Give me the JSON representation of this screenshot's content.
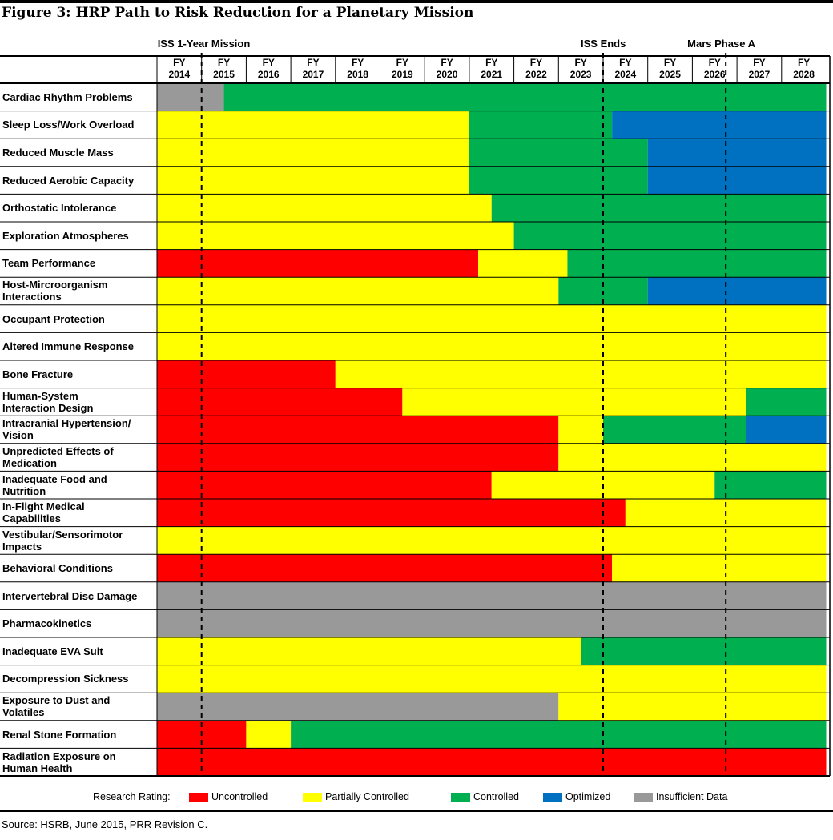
{
  "title": "Figure 3:  HRP Path to Risk Reduction for a Planetary Mission",
  "source": "Source: HSRB, June 2015, PRR Revision C.",
  "chart_data": {
    "type": "timeline",
    "years": [
      "FY\n2014",
      "FY\n2015",
      "FY\n2016",
      "FY\n2017",
      "FY\n2018",
      "FY\n2019",
      "FY\n2020",
      "FY\n2021",
      "FY\n2022",
      "FY\n2023",
      "FY\n2024",
      "FY\n2025",
      "FY\n2026",
      "FY\n2027",
      "FY\n2028"
    ],
    "year_start": 2014,
    "markers": [
      {
        "label": "ISS 1-Year Mission",
        "year": 2015.0
      },
      {
        "label": "ISS Ends",
        "year": 2024.0
      },
      {
        "label": "Mars Phase A",
        "year": 2026.75
      }
    ],
    "legend_title": "Research Rating:",
    "ratings": [
      {
        "key": "U",
        "label": "Uncontrolled",
        "color": "#ff0000"
      },
      {
        "key": "P",
        "label": "Partially Controlled",
        "color": "#ffff00"
      },
      {
        "key": "C",
        "label": "Controlled",
        "color": "#00b050"
      },
      {
        "key": "O",
        "label": "Optimized",
        "color": "#0070c0"
      },
      {
        "key": "I",
        "label": "Insufficient Data",
        "color": "#999999"
      }
    ],
    "risks": [
      {
        "name": "Cardiac Rhythm Problems",
        "segments": [
          [
            "I",
            2014.0,
            2015.5
          ],
          [
            "C",
            2015.5,
            2029.0
          ]
        ]
      },
      {
        "name": "Sleep Loss/Work Overload",
        "segments": [
          [
            "P",
            2014.0,
            2021.0
          ],
          [
            "C",
            2021.0,
            2024.2
          ],
          [
            "O",
            2024.2,
            2029.0
          ]
        ]
      },
      {
        "name": "Reduced Muscle Mass",
        "segments": [
          [
            "P",
            2014.0,
            2021.0
          ],
          [
            "C",
            2021.0,
            2025.0
          ],
          [
            "O",
            2025.0,
            2029.0
          ]
        ]
      },
      {
        "name": "Reduced Aerobic Capacity",
        "segments": [
          [
            "P",
            2014.0,
            2021.0
          ],
          [
            "C",
            2021.0,
            2025.0
          ],
          [
            "O",
            2025.0,
            2029.0
          ]
        ]
      },
      {
        "name": "Orthostatic Intolerance",
        "segments": [
          [
            "P",
            2014.0,
            2021.5
          ],
          [
            "C",
            2021.5,
            2029.0
          ]
        ]
      },
      {
        "name": "Exploration Atmospheres",
        "segments": [
          [
            "P",
            2014.0,
            2022.0
          ],
          [
            "C",
            2022.0,
            2029.0
          ]
        ]
      },
      {
        "name": "Team Performance",
        "segments": [
          [
            "U",
            2014.0,
            2021.2
          ],
          [
            "P",
            2021.2,
            2023.2
          ],
          [
            "C",
            2023.2,
            2029.0
          ]
        ]
      },
      {
        "name": "Host-Mircroorganism\nInteractions",
        "segments": [
          [
            "P",
            2014.0,
            2023.0
          ],
          [
            "C",
            2023.0,
            2025.0
          ],
          [
            "O",
            2025.0,
            2029.0
          ]
        ]
      },
      {
        "name": "Occupant Protection",
        "segments": [
          [
            "P",
            2014.0,
            2029.0
          ]
        ]
      },
      {
        "name": "Altered Immune Response",
        "segments": [
          [
            "P",
            2014.0,
            2029.0
          ]
        ]
      },
      {
        "name": "Bone Fracture",
        "segments": [
          [
            "U",
            2014.0,
            2018.0
          ],
          [
            "P",
            2018.0,
            2029.0
          ]
        ]
      },
      {
        "name": "Human-System\nInteraction Design",
        "segments": [
          [
            "U",
            2014.0,
            2019.5
          ],
          [
            "P",
            2019.5,
            2027.2
          ],
          [
            "C",
            2027.2,
            2029.0
          ]
        ]
      },
      {
        "name": "Intracranial Hypertension/\nVision",
        "segments": [
          [
            "U",
            2014.0,
            2023.0
          ],
          [
            "P",
            2023.0,
            2024.0
          ],
          [
            "C",
            2024.0,
            2027.2
          ],
          [
            "O",
            2027.2,
            2029.0
          ]
        ]
      },
      {
        "name": "Unpredicted Effects of\nMedication",
        "segments": [
          [
            "U",
            2014.0,
            2023.0
          ],
          [
            "P",
            2023.0,
            2029.0
          ]
        ]
      },
      {
        "name": "Inadequate Food and\nNutrition",
        "segments": [
          [
            "U",
            2014.0,
            2021.5
          ],
          [
            "P",
            2021.5,
            2026.5
          ],
          [
            "C",
            2026.5,
            2029.0
          ]
        ]
      },
      {
        "name": "In-Flight Medical\nCapabilities",
        "segments": [
          [
            "U",
            2014.0,
            2024.5
          ],
          [
            "P",
            2024.5,
            2029.0
          ]
        ]
      },
      {
        "name": "Vestibular/Sensorimotor\nImpacts",
        "segments": [
          [
            "P",
            2014.0,
            2029.0
          ]
        ]
      },
      {
        "name": "Behavioral Conditions",
        "segments": [
          [
            "U",
            2014.0,
            2024.2
          ],
          [
            "P",
            2024.2,
            2029.0
          ]
        ]
      },
      {
        "name": "Intervertebral Disc Damage",
        "segments": [
          [
            "I",
            2014.0,
            2029.0
          ]
        ]
      },
      {
        "name": "Pharmacokinetics",
        "segments": [
          [
            "I",
            2014.0,
            2029.0
          ]
        ]
      },
      {
        "name": "Inadequate EVA Suit",
        "segments": [
          [
            "P",
            2014.0,
            2023.5
          ],
          [
            "C",
            2023.5,
            2029.0
          ]
        ]
      },
      {
        "name": "Decompression Sickness",
        "segments": [
          [
            "P",
            2014.0,
            2029.0
          ]
        ]
      },
      {
        "name": "Exposure to Dust and\nVolatiles",
        "segments": [
          [
            "I",
            2014.0,
            2023.0
          ],
          [
            "P",
            2023.0,
            2029.0
          ]
        ]
      },
      {
        "name": "Renal Stone Formation",
        "segments": [
          [
            "U",
            2014.0,
            2016.0
          ],
          [
            "P",
            2016.0,
            2017.0
          ],
          [
            "C",
            2017.0,
            2029.0
          ]
        ]
      },
      {
        "name": "Radiation Exposure on\nHuman Health",
        "segments": [
          [
            "U",
            2014.0,
            2029.0
          ]
        ]
      }
    ]
  }
}
